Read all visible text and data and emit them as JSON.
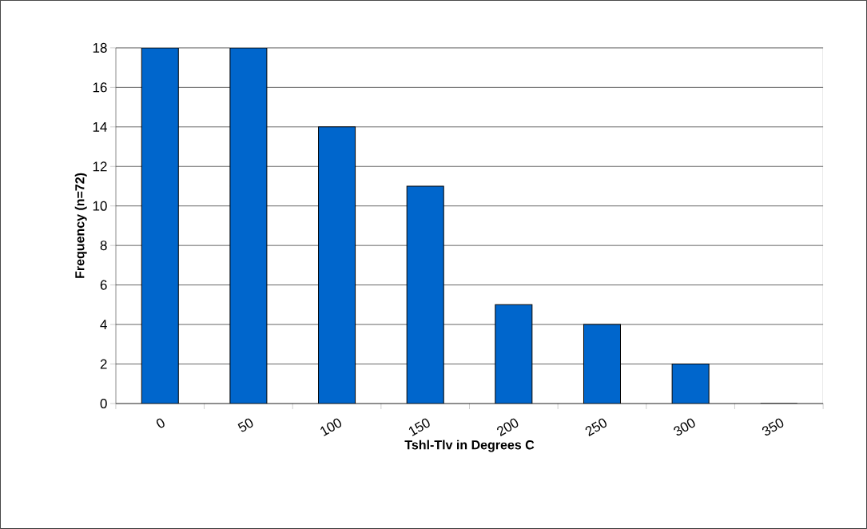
{
  "chart_data": {
    "type": "bar",
    "xlabel": "Tshl-Tlv in Degrees C",
    "ylabel": "Frequency  (n=72)",
    "categories": [
      "0",
      "50",
      "100",
      "150",
      "200",
      "250",
      "300",
      "350"
    ],
    "values": [
      18,
      18,
      14,
      11,
      5,
      4,
      2,
      0
    ],
    "color": "#0066cc",
    "ylim": [
      0,
      18
    ],
    "yticks": [
      0,
      2,
      4,
      6,
      8,
      10,
      12,
      14,
      16,
      18
    ],
    "grid": "y"
  }
}
